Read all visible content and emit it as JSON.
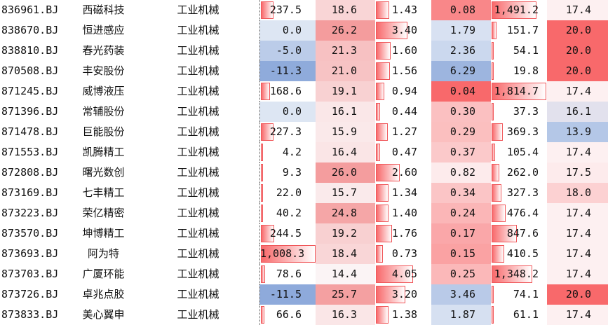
{
  "table": {
    "rows": [
      [
        "836961.BJ",
        "西磁科技",
        "工业机械",
        "237.5",
        "18.6",
        "1.43",
        "0.08",
        "1,491.2",
        "17.4"
      ],
      [
        "838670.BJ",
        "恒进感应",
        "工业机械",
        "0.0",
        "26.2",
        "3.40",
        "1.79",
        "151.7",
        "20.0"
      ],
      [
        "838810.BJ",
        "春光药装",
        "工业机械",
        "-5.0",
        "21.3",
        "1.60",
        "2.36",
        "54.1",
        "20.0"
      ],
      [
        "870508.BJ",
        "丰安股份",
        "工业机械",
        "-11.3",
        "21.0",
        "1.56",
        "6.29",
        "19.8",
        "20.0"
      ],
      [
        "871245.BJ",
        "威博液压",
        "工业机械",
        "168.6",
        "19.1",
        "0.94",
        "0.04",
        "1,814.7",
        "17.4"
      ],
      [
        "871396.BJ",
        "常辅股份",
        "工业机械",
        "0.0",
        "16.1",
        "0.44",
        "0.30",
        "37.3",
        "16.1"
      ],
      [
        "871478.BJ",
        "巨能股份",
        "工业机械",
        "227.3",
        "15.9",
        "1.27",
        "0.29",
        "369.3",
        "13.9"
      ],
      [
        "871553.BJ",
        "凯腾精工",
        "工业机械",
        "4.2",
        "16.4",
        "0.47",
        "0.37",
        "105.4",
        "17.4"
      ],
      [
        "872808.BJ",
        "曙光数创",
        "工业机械",
        "9.3",
        "26.0",
        "2.60",
        "0.82",
        "262.0",
        "17.5"
      ],
      [
        "873169.BJ",
        "七丰精工",
        "工业机械",
        "22.0",
        "15.7",
        "1.34",
        "0.34",
        "327.3",
        "18.0"
      ],
      [
        "873223.BJ",
        "荣亿精密",
        "工业机械",
        "40.2",
        "24.8",
        "1.40",
        "0.24",
        "476.4",
        "17.4"
      ],
      [
        "873570.BJ",
        "坤博精工",
        "工业机械",
        "244.5",
        "19.2",
        "1.76",
        "0.17",
        "847.6",
        "17.4"
      ],
      [
        "873693.BJ",
        "阿为特",
        "工业机械",
        "1,008.3",
        "18.4",
        "0.73",
        "0.15",
        "410.5",
        "17.4"
      ],
      [
        "873703.BJ",
        "广厦环能",
        "工业机械",
        "78.6",
        "14.4",
        "4.05",
        "0.25",
        "1,348.2",
        "17.4"
      ],
      [
        "873726.BJ",
        "卓兆点胶",
        "工业机械",
        "-11.5",
        "25.7",
        "3.20",
        "3.46",
        "74.1",
        "20.0"
      ],
      [
        "873833.BJ",
        "美心翼申",
        "工业机械",
        "66.6",
        "16.3",
        "1.38",
        "1.87",
        "61.1",
        "17.4"
      ]
    ]
  }
}
